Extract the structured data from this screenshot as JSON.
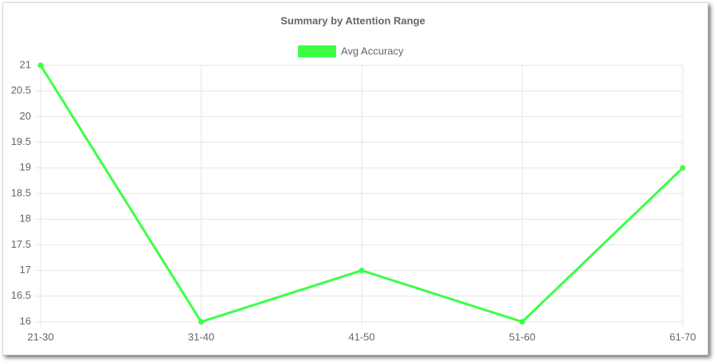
{
  "chart_data": {
    "type": "line",
    "title": "Summary by Attention Range",
    "categories": [
      "21-30",
      "31-40",
      "41-50",
      "51-60",
      "61-70"
    ],
    "series": [
      {
        "name": "Avg Accuracy",
        "color": "#3cff44",
        "values": [
          21,
          16,
          17,
          16,
          19
        ]
      }
    ],
    "ylim": [
      16,
      21
    ],
    "yticks": [
      16,
      16.5,
      17,
      17.5,
      18,
      18.5,
      19,
      19.5,
      20,
      20.5,
      21
    ],
    "grid": true,
    "legend": "top"
  }
}
